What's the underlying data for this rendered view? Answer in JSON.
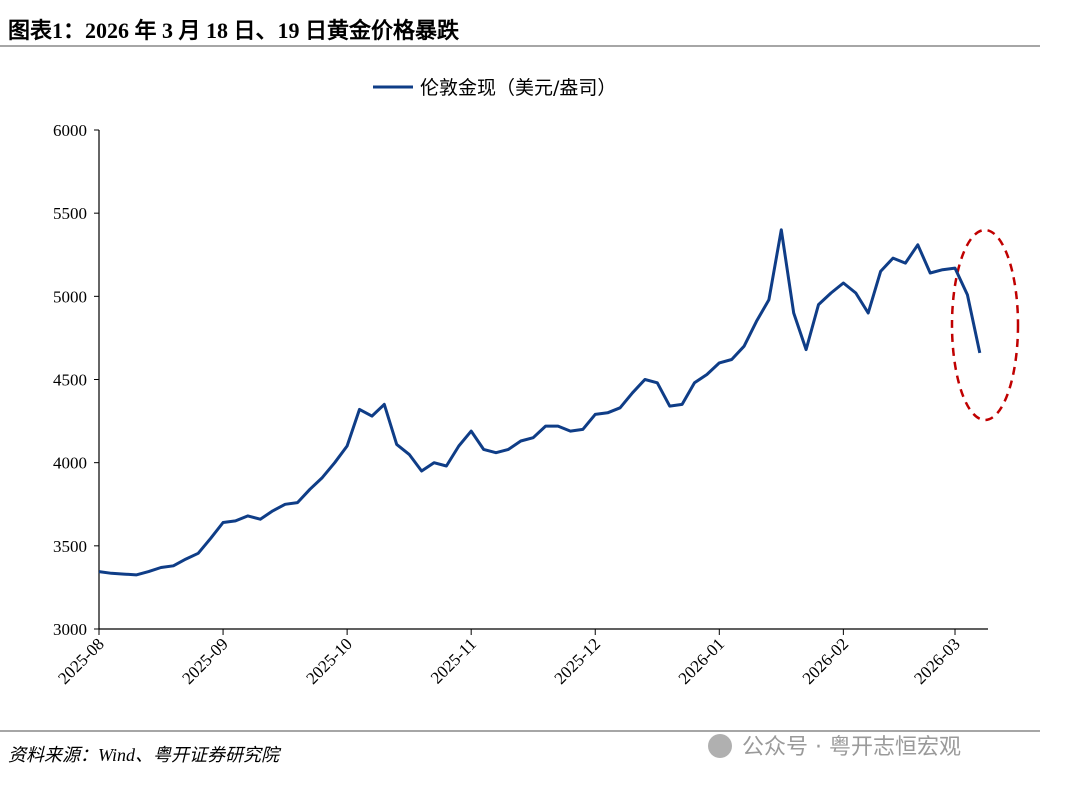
{
  "chart_data": {
    "type": "line",
    "title": "图表1：2026 年 3 月 18 日、19 日黄金价格暴跌",
    "source": "资料来源：Wind、粤开证券研究院",
    "watermark": "公众号 · 粤开志恒宏观",
    "categories": [
      "2025-08",
      null,
      null,
      null,
      null,
      null,
      null,
      null,
      null,
      null,
      "2025-09",
      null,
      null,
      null,
      null,
      null,
      null,
      null,
      null,
      null,
      "2025-10",
      null,
      null,
      null,
      null,
      null,
      null,
      null,
      null,
      null,
      "2025-11",
      null,
      null,
      null,
      null,
      null,
      null,
      null,
      null,
      null,
      "2025-12",
      null,
      null,
      null,
      null,
      null,
      null,
      null,
      null,
      null,
      "2026-01",
      null,
      null,
      null,
      null,
      null,
      null,
      null,
      null,
      null,
      "2026-02",
      null,
      null,
      null,
      null,
      null,
      null,
      null,
      null,
      "2026-03",
      null,
      null
    ],
    "series": [
      {
        "name": "伦敦金现（美元/盎司）",
        "color": "#0f3d87",
        "values": [
          3345,
          3335,
          3330,
          3325,
          3345,
          3370,
          3380,
          3420,
          3455,
          3545,
          3640,
          3650,
          3680,
          3660,
          3710,
          3750,
          3760,
          3840,
          3910,
          4000,
          4100,
          4320,
          4280,
          4350,
          4110,
          4050,
          3950,
          4000,
          3980,
          4100,
          4190,
          4080,
          4060,
          4080,
          4130,
          4150,
          4220,
          4220,
          4190,
          4200,
          4290,
          4300,
          4330,
          4420,
          4500,
          4480,
          4340,
          4350,
          4480,
          4530,
          4600,
          4620,
          4700,
          4850,
          4980,
          5400,
          4900,
          4680,
          4950,
          5020,
          5080,
          5020,
          4900,
          5150,
          5230,
          5200,
          5310,
          5140,
          5160,
          5170,
          5010,
          4660
        ]
      }
    ],
    "ylim": [
      3000,
      6000
    ],
    "yticks": [
      3000,
      3500,
      4000,
      4500,
      5000,
      5500,
      6000
    ],
    "grid": false
  }
}
